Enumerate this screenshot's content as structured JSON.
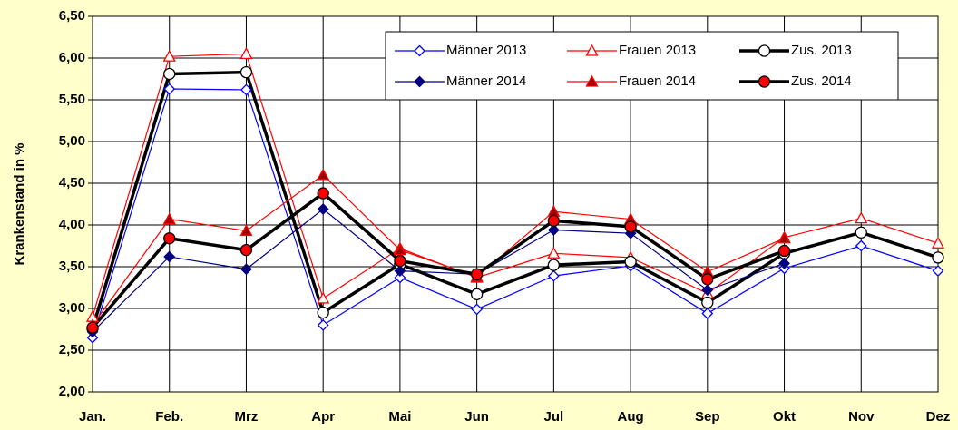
{
  "chart_data": {
    "type": "line",
    "y_label": "Krankenstand in %",
    "categories": [
      "Jan.",
      "Feb.",
      "Mrz",
      "Apr",
      "Mai",
      "Jun",
      "Jul",
      "Aug",
      "Sep",
      "Okt",
      "Nov",
      "Dez"
    ],
    "ylim": [
      2,
      6.5
    ],
    "yticks": [
      {
        "value": 2,
        "label": "2,00"
      },
      {
        "value": 2.5,
        "label": "2,50"
      },
      {
        "value": 3,
        "label": "3,00"
      },
      {
        "value": 3.5,
        "label": "3,50"
      },
      {
        "value": 4,
        "label": "4,00"
      },
      {
        "value": 4.5,
        "label": "4,50"
      },
      {
        "value": 5,
        "label": "5,00"
      },
      {
        "value": 5.5,
        "label": "5,50"
      },
      {
        "value": 6,
        "label": "6,00"
      },
      {
        "value": 6.5,
        "label": "6,50"
      }
    ],
    "grid": true,
    "legend": "top-right",
    "series": [
      {
        "name": "Männer 2013",
        "color": "#0000ff",
        "marker": "diamond",
        "marker_fill": "#ffffff",
        "line_width": 1.2,
        "values": [
          2.65,
          5.63,
          5.62,
          2.8,
          3.37,
          2.99,
          3.39,
          3.51,
          2.94,
          3.48,
          3.75,
          3.45
        ]
      },
      {
        "name": "Frauen 2013",
        "color": "#ff0000",
        "marker": "triangle",
        "marker_fill": "#ffffff",
        "line_width": 1.2,
        "values": [
          2.9,
          6.02,
          6.05,
          3.12,
          3.72,
          3.37,
          3.66,
          3.61,
          3.18,
          3.85,
          4.08,
          3.78
        ]
      },
      {
        "name": "Zus. 2013",
        "color": "#000000",
        "marker": "circle",
        "marker_fill": "#ffffff",
        "line_width": 3.5,
        "values": [
          2.76,
          5.81,
          5.83,
          2.95,
          3.53,
          3.17,
          3.52,
          3.56,
          3.07,
          3.66,
          3.91,
          3.61
        ]
      },
      {
        "name": "Männer 2014",
        "color": "#000080",
        "marker": "diamond",
        "marker_fill": "#000080",
        "line_width": 1.2,
        "values": [
          2.72,
          3.62,
          3.47,
          4.19,
          3.45,
          3.41,
          3.94,
          3.9,
          3.22,
          3.54,
          null,
          null
        ]
      },
      {
        "name": "Frauen 2014",
        "color": "#ff0000",
        "marker": "triangle",
        "marker_fill": "#a00000",
        "line_width": 1.2,
        "values": [
          2.8,
          4.07,
          3.93,
          4.6,
          3.7,
          3.38,
          4.16,
          4.07,
          3.44,
          3.84,
          null,
          null
        ]
      },
      {
        "name": "Zus. 2014",
        "color": "#000000",
        "marker": "circle",
        "marker_fill": "#ff0000",
        "line_width": 3.5,
        "values": [
          2.77,
          3.84,
          3.7,
          4.38,
          3.57,
          3.41,
          4.05,
          3.98,
          3.35,
          3.69,
          null,
          null
        ]
      }
    ]
  }
}
